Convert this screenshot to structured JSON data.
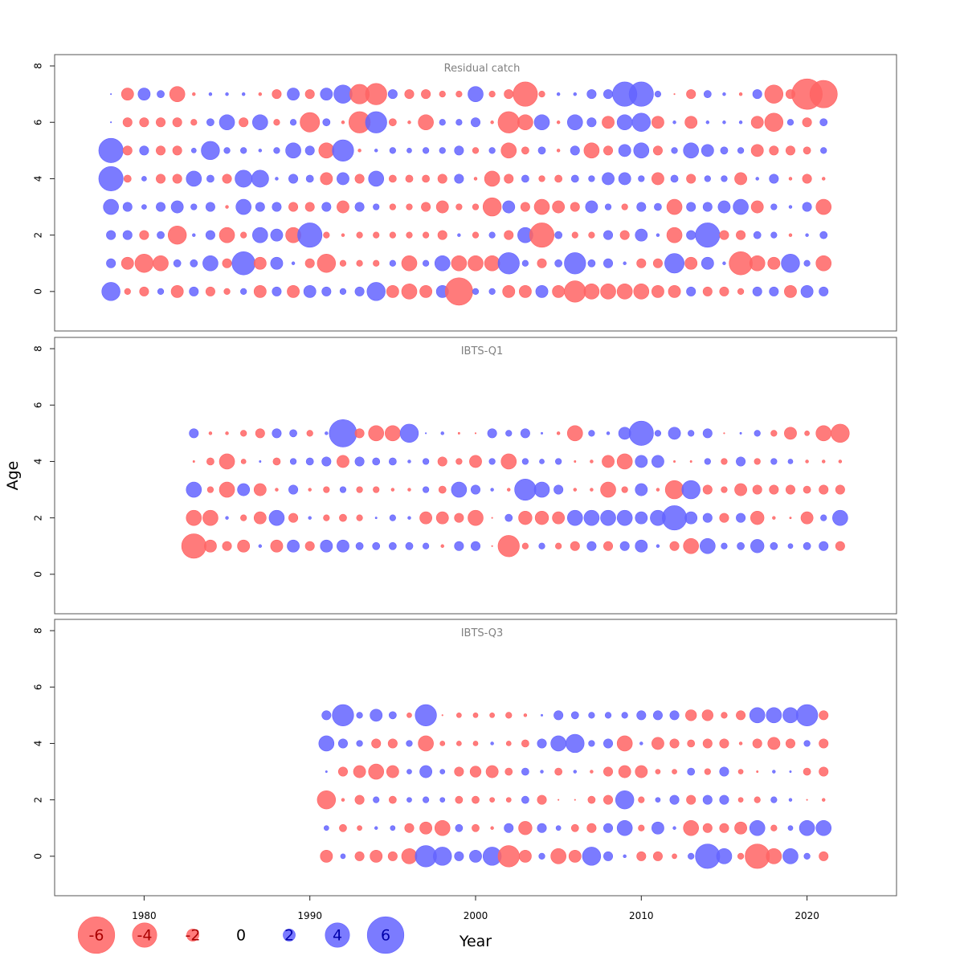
{
  "chart_data": {
    "type": "scatter",
    "subtype": "bubble",
    "xlabel": "Year",
    "ylabel": "Age",
    "xlim": [
      1974.6,
      2025.4
    ],
    "ylim": [
      -1.4,
      8.4
    ],
    "x_ticks": [
      1980,
      1990,
      2000,
      2010,
      2020
    ],
    "y_ticks": [
      0,
      2,
      4,
      6,
      8
    ],
    "grid": false,
    "colors": {
      "positive": "#6464ff",
      "negative": "#ff6464",
      "positive_text": "#0000aa",
      "negative_text": "#aa0000"
    },
    "legend": {
      "placement": "bottom-left",
      "entries": [
        {
          "label": "-6",
          "value": -6
        },
        {
          "label": "-4",
          "value": -4
        },
        {
          "label": "-2",
          "value": -2
        },
        {
          "label": "0",
          "value": 0
        },
        {
          "label": "2",
          "value": 2
        },
        {
          "label": "4",
          "value": 4
        },
        {
          "label": "6",
          "value": 6
        }
      ]
    },
    "panels": [
      {
        "title": "Residual catch",
        "years": [
          1978,
          1979,
          1980,
          1981,
          1982,
          1983,
          1984,
          1985,
          1986,
          1987,
          1988,
          1989,
          1990,
          1991,
          1992,
          1993,
          1994,
          1995,
          1996,
          1997,
          1998,
          1999,
          2000,
          2001,
          2002,
          2003,
          2004,
          2005,
          2006,
          2007,
          2008,
          2009,
          2010,
          2011,
          2012,
          2013,
          2014,
          2015,
          2016,
          2017,
          2018,
          2019,
          2020,
          2021
        ],
        "ages": [
          0,
          1,
          2,
          3,
          4,
          5,
          6,
          7
        ],
        "residuals": [
          [
            3,
            -1,
            -1.5,
            1,
            -2,
            1.5,
            -1.5,
            -1,
            1,
            -2,
            1.5,
            -2,
            2,
            1.5,
            1,
            1.5,
            3,
            -2,
            -2.5,
            -2,
            2,
            -4.5,
            1,
            1,
            -2,
            -2,
            2,
            -2,
            -3.5,
            -2.5,
            -2.5,
            -2.5,
            -2.5,
            -2,
            -2,
            1.5,
            -1.5,
            -1.5,
            -1,
            1.5,
            1.5,
            -2,
            2,
            1.5
          ],
          [
            1.5,
            -2,
            -3,
            -2.5,
            1.2,
            1.2,
            2.5,
            -1.5,
            3.8,
            -2,
            2,
            0.5,
            -1.5,
            -3,
            -1,
            -1,
            -1,
            1,
            -2.5,
            1,
            2.5,
            -2.5,
            -2.5,
            -2.5,
            3.5,
            1,
            -1.5,
            1.2,
            3.5,
            1.2,
            1.5,
            0.5,
            -1.5,
            -1.5,
            3.2,
            -2,
            2,
            0.5,
            -3.8,
            -2.5,
            -2,
            3,
            1,
            -2.5
          ],
          [
            1.5,
            1.5,
            -1.5,
            1.2,
            -3,
            0.5,
            1.5,
            -2.5,
            -1,
            2.5,
            2,
            -2.5,
            4,
            -1,
            -0.5,
            -1,
            -1,
            -1,
            -1,
            -1,
            -1.5,
            0.5,
            -1,
            1,
            -1.5,
            2.5,
            -4,
            1.2,
            -1,
            -1,
            1.5,
            -1.5,
            2,
            0.5,
            -2.5,
            1.5,
            4,
            -1.5,
            -1.5,
            1.2,
            1,
            -0.5,
            0.5,
            1.2
          ],
          [
            2.5,
            1.5,
            0.8,
            1.5,
            2,
            1,
            1.5,
            -0.5,
            2.5,
            1.5,
            1.5,
            -1.5,
            -1.5,
            1.5,
            -2,
            1.5,
            1,
            -1,
            -1,
            -1.5,
            -2,
            -1,
            -1,
            -3,
            2,
            -1.5,
            -2.5,
            -2,
            -1.5,
            2,
            1,
            -1,
            1.5,
            1.2,
            -2.5,
            1.5,
            1.5,
            2,
            2.5,
            -2,
            1,
            0.5,
            1.5,
            -2.5
          ],
          [
            4,
            -1.2,
            0.8,
            -1.5,
            -1.5,
            2.5,
            1.2,
            -1.5,
            2.8,
            2.8,
            0.5,
            1.5,
            1.2,
            -2,
            2,
            -1.5,
            2.5,
            -1.2,
            -1.2,
            -1.2,
            -1.5,
            1.5,
            -0.5,
            -2.5,
            -1.5,
            1.2,
            -1,
            -1.2,
            1.2,
            1,
            2,
            2,
            1,
            -2,
            1.2,
            -1.5,
            1,
            1,
            -2,
            0.5,
            1.5,
            -0.5,
            -1.5,
            -0.5
          ],
          [
            4,
            -1.5,
            1.5,
            -1.5,
            -1.5,
            0.8,
            3,
            1,
            1,
            0.5,
            1,
            2.5,
            1.5,
            -2.5,
            3.5,
            -0.5,
            0.5,
            1,
            0.8,
            1,
            1,
            1.5,
            -1,
            1,
            -2.5,
            -1.2,
            1.2,
            -0.5,
            1.5,
            -2.5,
            -1.5,
            2,
            2.5,
            -1.5,
            1,
            2.5,
            2,
            1.2,
            1,
            -2,
            -1.5,
            -1.5,
            -1.2,
            1
          ],
          [
            0.2,
            -1.5,
            -1.5,
            -1.5,
            -1.5,
            -1,
            1.2,
            2.5,
            -1.5,
            2.5,
            -1,
            1,
            -3.2,
            1.2,
            -0.5,
            -3.5,
            3.5,
            -1.2,
            -0.5,
            -2.5,
            1,
            1,
            1.5,
            -0.5,
            -3.5,
            -2.5,
            2.5,
            -0.5,
            2.5,
            1.5,
            -2,
            2.5,
            3,
            -2,
            0.5,
            -2,
            0.5,
            0.5,
            0.5,
            -2,
            -3,
            1,
            -1.5,
            1.2
          ],
          [
            0.2,
            -2,
            2,
            1.2,
            -2.5,
            -0.5,
            0.5,
            0.5,
            0.5,
            -0.5,
            -1.5,
            2,
            -1.5,
            2,
            3,
            -3.2,
            -3.5,
            1.5,
            -1.5,
            -1.5,
            -1,
            -1,
            2.5,
            -1,
            -1.5,
            -4,
            -1,
            0.5,
            0.5,
            1.5,
            1.5,
            4,
            4,
            1,
            -0.2,
            -1.5,
            1.2,
            0.5,
            -0.5,
            1.5,
            -3,
            -1.5,
            -5,
            -4.5
          ]
        ]
      },
      {
        "title": "IBTS-Q1",
        "years": [
          1983,
          1984,
          1985,
          1986,
          1987,
          1988,
          1989,
          1990,
          1991,
          1992,
          1993,
          1994,
          1995,
          1996,
          1997,
          1998,
          1999,
          2000,
          2001,
          2002,
          2003,
          2004,
          2005,
          2006,
          2007,
          2008,
          2009,
          2010,
          2011,
          2012,
          2013,
          2014,
          2015,
          2016,
          2017,
          2018,
          2019,
          2020,
          2021,
          2022
        ],
        "ages": [
          1,
          2,
          3,
          4,
          5
        ],
        "residuals": [
          [
            -4,
            -2,
            -1.5,
            -2,
            0.5,
            -2,
            2,
            -1.5,
            2,
            2,
            1.2,
            1.2,
            1.2,
            1.2,
            1,
            -0.5,
            1.5,
            1.5,
            -0.2,
            -3.5,
            -1,
            1,
            -1,
            -1.5,
            1.5,
            -1.5,
            1.5,
            2,
            0.5,
            -1.5,
            -2.5,
            2.5,
            1,
            1.2,
            2.2,
            1.2,
            0.8,
            1.2,
            1.5,
            -1.5
          ],
          [
            -2.5,
            -2.5,
            0.5,
            -1,
            -2,
            2.5,
            -1.5,
            0.5,
            -1,
            -1.2,
            -1,
            0.3,
            1,
            0.5,
            -2,
            -2,
            -1.5,
            -2.5,
            -0.2,
            1.2,
            -2.2,
            -2.2,
            -2,
            2.5,
            2.5,
            2.5,
            2.5,
            2,
            2.5,
            4,
            2,
            1.5,
            -1.5,
            1.5,
            -2.2,
            -0.5,
            -0.3,
            -2,
            1,
            2.5
          ],
          [
            2.5,
            -1,
            -2.5,
            2,
            -2,
            -0.5,
            1.5,
            -0.5,
            -1,
            1,
            -1,
            -1,
            -0.5,
            -0.5,
            1,
            -1.2,
            2.5,
            1.5,
            0.5,
            -0.5,
            3.5,
            2.5,
            1.5,
            -0.5,
            -0.5,
            -2.5,
            -1,
            2,
            -0.5,
            -3,
            3,
            -1.5,
            -1,
            -2,
            -1.5,
            -1.5,
            -1.5,
            -1.2,
            -1.5,
            -1.5
          ],
          [
            -0.3,
            -1.2,
            -2.5,
            -0.8,
            0.3,
            -1.2,
            1,
            1.2,
            1.5,
            -2,
            1.5,
            1.2,
            1.2,
            0.5,
            1,
            -1.5,
            -1,
            -2,
            1,
            -2.5,
            1,
            0.8,
            1,
            -0.3,
            -0.5,
            -2,
            -2.5,
            2,
            2,
            -0.3,
            -0.3,
            1,
            -1,
            1.5,
            -1,
            1,
            0.8,
            -0.5,
            -0.5,
            -0.5
          ],
          [
            1.5,
            -0.5,
            -0.5,
            -1,
            -1.5,
            1.5,
            1.2,
            -1,
            0.5,
            4.5,
            -1.5,
            -2.5,
            -2.5,
            3,
            0.2,
            0.5,
            -0.3,
            -0.2,
            1.5,
            1,
            1.5,
            0.3,
            -0.5,
            -2.5,
            1,
            0.5,
            2,
            4,
            1,
            2,
            1,
            1.5,
            -0.2,
            0.3,
            1,
            -1,
            -2,
            -0.8,
            -2.5,
            -3
          ]
        ]
      },
      {
        "title": "IBTS-Q3",
        "years": [
          1991,
          1992,
          1993,
          1994,
          1995,
          1996,
          1997,
          1998,
          1999,
          2000,
          2001,
          2002,
          2003,
          2004,
          2005,
          2006,
          2007,
          2008,
          2009,
          2010,
          2011,
          2012,
          2013,
          2014,
          2015,
          2016,
          2017,
          2018,
          2019,
          2020,
          2021
        ],
        "ages": [
          0,
          1,
          2,
          3,
          4,
          5
        ],
        "residuals": [
          [
            -2,
            0.8,
            -1.5,
            -2,
            -1.5,
            -2.5,
            3.5,
            3,
            1.5,
            2,
            3,
            -3.5,
            -2,
            1,
            -2.5,
            -2,
            3,
            1.5,
            0.5,
            -1.5,
            -1.5,
            -0.8,
            1,
            4,
            2.5,
            -1,
            -4,
            -2.5,
            2.5,
            1,
            -1.5
          ],
          [
            0.8,
            -1.2,
            -0.8,
            0.5,
            0.8,
            -1.5,
            -2,
            -2.5,
            1.2,
            -1.2,
            -0.5,
            1.5,
            -2.2,
            1.5,
            0.8,
            -1.2,
            -1.5,
            1.5,
            2.5,
            -1,
            2,
            0.5,
            -2.5,
            -1.5,
            -1.5,
            -2,
            2.5,
            -1,
            0.8,
            2.5,
            2.5
          ],
          [
            -3,
            -0.5,
            -1.5,
            1,
            -1.2,
            0.8,
            1,
            0.8,
            -1.2,
            -1.2,
            -0.8,
            -0.8,
            1.2,
            -1.5,
            -0.2,
            -0.2,
            -1.2,
            -1.5,
            3,
            -1,
            0.8,
            1.5,
            -1.5,
            1.5,
            1.5,
            -0.8,
            -1,
            1,
            0.5,
            -0.2,
            -0.5
          ],
          [
            0.3,
            -1.5,
            -2,
            -2.5,
            -2,
            0.8,
            2,
            0.8,
            -1.5,
            -1.8,
            -2,
            -1.2,
            1.2,
            0.5,
            -1.2,
            0.5,
            -0.5,
            -1.5,
            -2,
            -2,
            -0.8,
            -0.8,
            1.2,
            -1,
            1.5,
            -0.8,
            -0.3,
            0.5,
            0.3,
            -1.2,
            -1.5
          ],
          [
            2.5,
            1.5,
            1,
            -1.5,
            -1.5,
            1,
            -2.5,
            -0.8,
            -0.8,
            -0.8,
            0.5,
            -0.8,
            -1.2,
            1.5,
            2.5,
            3,
            1,
            1.5,
            -2.5,
            0.5,
            -2,
            -1.5,
            -1.2,
            -1.5,
            -1.5,
            -0.5,
            -1.5,
            -2,
            -1.5,
            1,
            -1.5
          ],
          [
            1.5,
            3.5,
            1,
            2,
            1.2,
            -0.8,
            3.5,
            -0.2,
            -0.8,
            -0.8,
            -0.8,
            -1,
            -0.5,
            0.3,
            1.5,
            1.2,
            1,
            1,
            1,
            1.5,
            1.5,
            1.5,
            -1.8,
            -1.8,
            -1,
            -1.5,
            2.5,
            2.5,
            2.5,
            3.5,
            -1.5
          ]
        ]
      }
    ]
  }
}
